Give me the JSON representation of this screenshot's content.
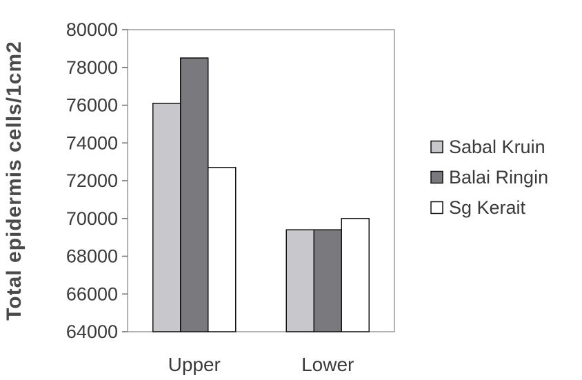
{
  "chart_data": {
    "type": "bar",
    "title": "",
    "xlabel": "",
    "ylabel": "Total epidermis cells/1cm2",
    "categories": [
      "Upper",
      "Lower"
    ],
    "series": [
      {
        "name": "Sabal Kruin",
        "values": [
          76100,
          69400
        ],
        "color": "#c8c8cc"
      },
      {
        "name": "Balai Ringin",
        "values": [
          78500,
          69400
        ],
        "color": "#7a7a7e"
      },
      {
        "name": "Sg Kerait",
        "values": [
          72700,
          70000
        ],
        "color": "#ffffff"
      }
    ],
    "ylim": [
      64000,
      80000
    ],
    "yticks": [
      64000,
      66000,
      68000,
      70000,
      72000,
      74000,
      76000,
      78000,
      80000
    ],
    "grid": false,
    "legend_position": "right"
  }
}
